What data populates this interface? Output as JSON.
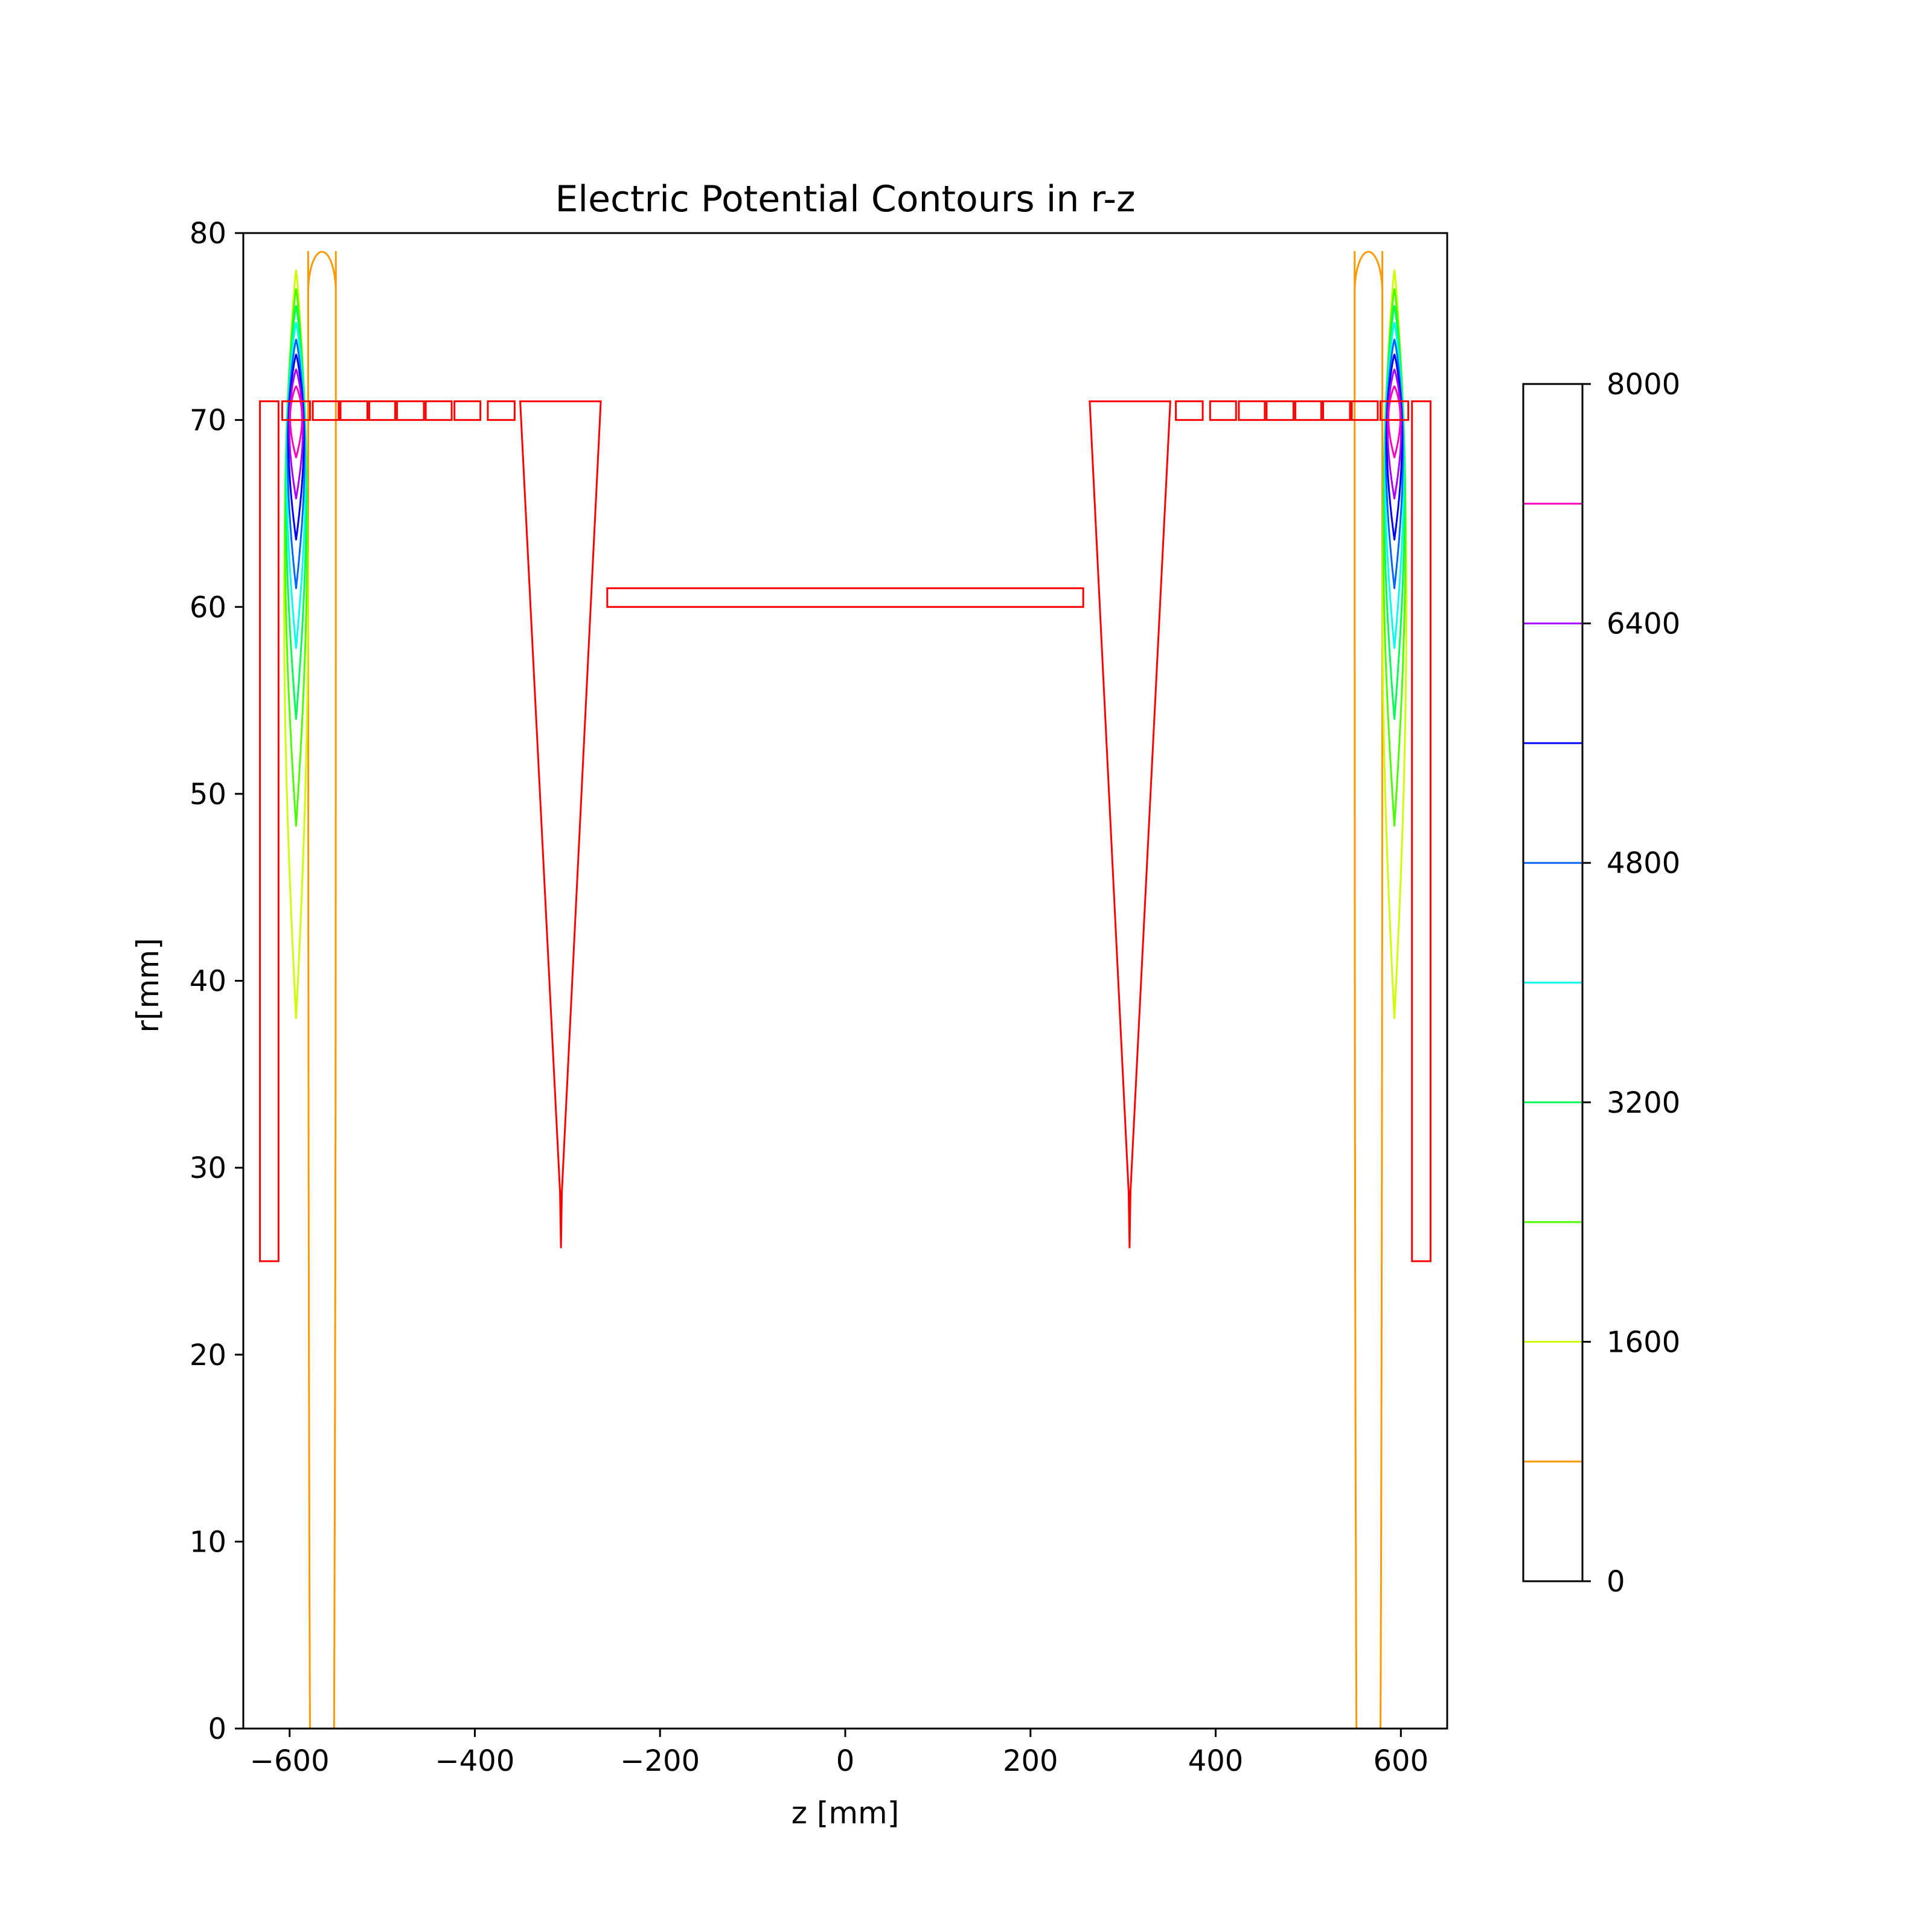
{
  "chart_data": {
    "type": "contour",
    "title": "Electric Potential Contours in r-z",
    "xlabel": "z [mm]",
    "ylabel": "r[mm]",
    "xlim": [
      -650,
      650
    ],
    "ylim": [
      0,
      80
    ],
    "xticks": [
      -600,
      -400,
      -200,
      0,
      200,
      400,
      600
    ],
    "yticks": [
      0,
      10,
      20,
      30,
      40,
      50,
      60,
      70,
      80
    ],
    "xtick_labels": [
      "−600",
      "−400",
      "−200",
      "0",
      "200",
      "400",
      "600"
    ],
    "ytick_labels": [
      "0",
      "10",
      "20",
      "30",
      "40",
      "50",
      "60",
      "70",
      "80"
    ],
    "grid": false,
    "colorbar": {
      "range": [
        0,
        8000
      ],
      "ticks": [
        0,
        1600,
        3200,
        4800,
        6400,
        8000
      ],
      "tick_labels": [
        "0",
        "1600",
        "3200",
        "4800",
        "6400",
        "8000"
      ]
    },
    "contour_levels": [
      {
        "value": 800,
        "color": "#ff9900",
        "top": 79.0,
        "z_outer": 552,
        "z_inner": 578,
        "bottom": 0,
        "open_bottom": true
      },
      {
        "value": 1600,
        "color": "#ccff00",
        "top": 78.0,
        "bottom": 38.0
      },
      {
        "value": 2400,
        "color": "#4cff00",
        "top": 77.0,
        "bottom": 48.3
      },
      {
        "value": 3200,
        "color": "#00ff55",
        "top": 76.1,
        "bottom": 54.0
      },
      {
        "value": 4000,
        "color": "#00ffee",
        "top": 75.2,
        "bottom": 57.8
      },
      {
        "value": 4800,
        "color": "#0066ff",
        "top": 74.3,
        "bottom": 61.0
      },
      {
        "value": 5600,
        "color": "#0000ff",
        "top": 73.5,
        "bottom": 63.6
      },
      {
        "value": 6400,
        "color": "#aa00ff",
        "top": 72.7,
        "bottom": 65.8
      },
      {
        "value": 7200,
        "color": "#ff00bb",
        "top": 71.8,
        "bottom": 68.0
      }
    ],
    "contour_center_z": 593,
    "electrode_color": "#ff0000",
    "electrodes": {
      "end_plate": {
        "z_inner": 612,
        "z_outer": 632,
        "r_bottom": 25,
        "r_top": 71
      },
      "ring_segments_z": [
        [
          578,
          608
        ],
        [
          547,
          575
        ],
        [
          516,
          545
        ],
        [
          486,
          514
        ],
        [
          455,
          484
        ],
        [
          425,
          453
        ],
        [
          394,
          422
        ],
        [
          357,
          386
        ]
      ],
      "ring_segments_r": [
        70.0,
        71.0
      ],
      "cone": {
        "z_a": 264,
        "z_b": 351,
        "r_top": 71,
        "tip_z": 307,
        "tip_r": 25.7
      },
      "center_tube": {
        "z": [
          -257,
          257
        ],
        "r": [
          60,
          61
        ]
      }
    }
  }
}
